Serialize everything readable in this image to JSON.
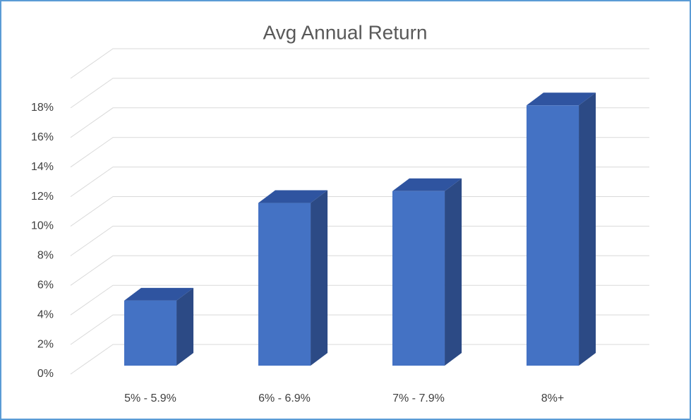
{
  "chart_data": {
    "type": "bar",
    "title": "Avg Annual Return",
    "categories": [
      "5% - 5.9%",
      "6% - 6.9%",
      "7% - 7.9%",
      "8%+"
    ],
    "values": [
      4.4,
      11,
      11.8,
      17.6
    ],
    "color": "#4472c4",
    "ylim": [
      0,
      20
    ],
    "yticks": [
      {
        "value": 0,
        "label": "0%"
      },
      {
        "value": 2,
        "label": "2%"
      },
      {
        "value": 4,
        "label": "4%"
      },
      {
        "value": 6,
        "label": "6%"
      },
      {
        "value": 8,
        "label": "8%"
      },
      {
        "value": 10,
        "label": "10%"
      },
      {
        "value": 12,
        "label": "12%"
      },
      {
        "value": 14,
        "label": "14%"
      },
      {
        "value": 16,
        "label": "16%"
      },
      {
        "value": 18,
        "label": "18%"
      }
    ],
    "grid": true
  }
}
